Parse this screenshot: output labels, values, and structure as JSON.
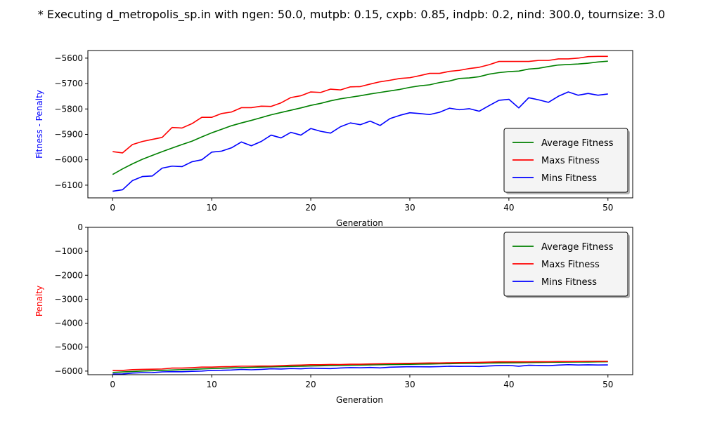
{
  "figure": {
    "title": "* Executing d_metropolis_sp.in with ngen: 50.0, mutpb: 0.15, cxpb: 0.85, indpb: 0.2, nind: 300.0, tournsize: 3.0"
  },
  "colors": {
    "average": "#008000",
    "maxs": "#ff0000",
    "mins": "#0000ff",
    "top_ylabel": "#0000ff",
    "bottom_ylabel": "#ff0000"
  },
  "chart_data": [
    {
      "type": "line",
      "xlabel": "Generation",
      "ylabel": "Fitness - Penalty",
      "xlim": [
        -2.5,
        52.5
      ],
      "ylim": [
        -6150,
        -5570
      ],
      "xticks": [
        0,
        10,
        20,
        30,
        40,
        50
      ],
      "yticks": [
        -6100,
        -6000,
        -5900,
        -5800,
        -5700,
        -5600
      ],
      "grid": false,
      "legend": "bottom-right",
      "x": [
        0,
        1,
        2,
        3,
        4,
        5,
        6,
        7,
        8,
        9,
        10,
        11,
        12,
        13,
        14,
        15,
        16,
        17,
        18,
        19,
        20,
        21,
        22,
        23,
        24,
        25,
        26,
        27,
        28,
        29,
        30,
        31,
        32,
        33,
        34,
        35,
        36,
        37,
        38,
        39,
        40,
        41,
        42,
        43,
        44,
        45,
        46,
        47,
        48,
        49,
        50
      ],
      "series": [
        {
          "name": "Average Fitness",
          "color": "#008000",
          "values": [
            -6058,
            -6036,
            -6016,
            -5998,
            -5983,
            -5968,
            -5954,
            -5940,
            -5927,
            -5910,
            -5894,
            -5880,
            -5866,
            -5855,
            -5845,
            -5834,
            -5823,
            -5814,
            -5805,
            -5796,
            -5786,
            -5778,
            -5768,
            -5760,
            -5754,
            -5748,
            -5741,
            -5735,
            -5729,
            -5723,
            -5715,
            -5709,
            -5705,
            -5696,
            -5690,
            -5680,
            -5678,
            -5673,
            -5663,
            -5657,
            -5653,
            -5651,
            -5643,
            -5640,
            -5633,
            -5627,
            -5625,
            -5623,
            -5620,
            -5615,
            -5612
          ]
        },
        {
          "name": "Maxs Fitness",
          "color": "#ff0000",
          "values": [
            -5968,
            -5973,
            -5940,
            -5928,
            -5920,
            -5912,
            -5873,
            -5875,
            -5858,
            -5833,
            -5833,
            -5818,
            -5812,
            -5795,
            -5795,
            -5789,
            -5790,
            -5776,
            -5755,
            -5748,
            -5733,
            -5735,
            -5722,
            -5725,
            -5713,
            -5712,
            -5702,
            -5693,
            -5687,
            -5680,
            -5677,
            -5669,
            -5660,
            -5660,
            -5652,
            -5648,
            -5641,
            -5636,
            -5626,
            -5613,
            -5613,
            -5613,
            -5613,
            -5609,
            -5609,
            -5603,
            -5603,
            -5600,
            -5594,
            -5593,
            -5593
          ]
        },
        {
          "name": "Mins Fitness",
          "color": "#0000ff",
          "values": [
            -6124,
            -6118,
            -6082,
            -6066,
            -6064,
            -6033,
            -6025,
            -6027,
            -6008,
            -6000,
            -5970,
            -5966,
            -5953,
            -5930,
            -5945,
            -5928,
            -5903,
            -5914,
            -5892,
            -5903,
            -5877,
            -5888,
            -5895,
            -5870,
            -5855,
            -5862,
            -5848,
            -5865,
            -5838,
            -5825,
            -5815,
            -5818,
            -5822,
            -5813,
            -5797,
            -5803,
            -5799,
            -5809,
            -5787,
            -5766,
            -5762,
            -5796,
            -5756,
            -5764,
            -5774,
            -5750,
            -5733,
            -5746,
            -5739,
            -5746,
            -5741
          ]
        }
      ]
    },
    {
      "type": "line",
      "xlabel": "Generation",
      "ylabel": "Penalty",
      "xlim": [
        -2.5,
        52.5
      ],
      "ylim": [
        -6150,
        0
      ],
      "xticks": [
        0,
        10,
        20,
        30,
        40,
        50
      ],
      "yticks": [
        -6000,
        -5000,
        -4000,
        -3000,
        -2000,
        -1000,
        0
      ],
      "grid": false,
      "legend": "top-right",
      "x": [
        0,
        1,
        2,
        3,
        4,
        5,
        6,
        7,
        8,
        9,
        10,
        11,
        12,
        13,
        14,
        15,
        16,
        17,
        18,
        19,
        20,
        21,
        22,
        23,
        24,
        25,
        26,
        27,
        28,
        29,
        30,
        31,
        32,
        33,
        34,
        35,
        36,
        37,
        38,
        39,
        40,
        41,
        42,
        43,
        44,
        45,
        46,
        47,
        48,
        49,
        50
      ],
      "series": [
        {
          "name": "Average Fitness",
          "color": "#008000",
          "values": [
            -6058,
            -6036,
            -6016,
            -5998,
            -5983,
            -5968,
            -5954,
            -5940,
            -5927,
            -5910,
            -5894,
            -5880,
            -5866,
            -5855,
            -5845,
            -5834,
            -5823,
            -5814,
            -5805,
            -5796,
            -5786,
            -5778,
            -5768,
            -5760,
            -5754,
            -5748,
            -5741,
            -5735,
            -5729,
            -5723,
            -5715,
            -5709,
            -5705,
            -5696,
            -5690,
            -5680,
            -5678,
            -5673,
            -5663,
            -5657,
            -5653,
            -5651,
            -5643,
            -5640,
            -5633,
            -5627,
            -5625,
            -5623,
            -5620,
            -5615,
            -5612
          ]
        },
        {
          "name": "Maxs Fitness",
          "color": "#ff0000",
          "values": [
            -5968,
            -5973,
            -5940,
            -5928,
            -5920,
            -5912,
            -5873,
            -5875,
            -5858,
            -5833,
            -5833,
            -5818,
            -5812,
            -5795,
            -5795,
            -5789,
            -5790,
            -5776,
            -5755,
            -5748,
            -5733,
            -5735,
            -5722,
            -5725,
            -5713,
            -5712,
            -5702,
            -5693,
            -5687,
            -5680,
            -5677,
            -5669,
            -5660,
            -5660,
            -5652,
            -5648,
            -5641,
            -5636,
            -5626,
            -5613,
            -5613,
            -5613,
            -5613,
            -5609,
            -5609,
            -5603,
            -5603,
            -5600,
            -5594,
            -5593,
            -5593
          ]
        },
        {
          "name": "Mins Fitness",
          "color": "#0000ff",
          "values": [
            -6124,
            -6118,
            -6082,
            -6066,
            -6064,
            -6033,
            -6025,
            -6027,
            -6008,
            -6000,
            -5970,
            -5966,
            -5953,
            -5930,
            -5945,
            -5928,
            -5903,
            -5914,
            -5892,
            -5903,
            -5877,
            -5888,
            -5895,
            -5870,
            -5855,
            -5862,
            -5848,
            -5865,
            -5838,
            -5825,
            -5815,
            -5818,
            -5822,
            -5813,
            -5797,
            -5803,
            -5799,
            -5809,
            -5787,
            -5766,
            -5762,
            -5796,
            -5756,
            -5764,
            -5774,
            -5750,
            -5733,
            -5746,
            -5739,
            -5746,
            -5741
          ]
        }
      ]
    }
  ]
}
